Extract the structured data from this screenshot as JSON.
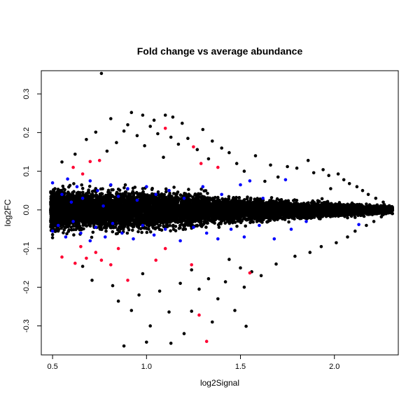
{
  "chart_data": {
    "type": "scatter",
    "title": "Fold change vs average abundance",
    "xlabel": "log2Signal",
    "ylabel": "log2FC",
    "xlim": [
      0.44,
      2.34
    ],
    "ylim": [
      -0.375,
      0.36
    ],
    "x_ticks": [
      {
        "value": 0.5,
        "label": "0.5"
      },
      {
        "value": 1.0,
        "label": "1.0"
      },
      {
        "value": 1.5,
        "label": "1.5"
      },
      {
        "value": 2.0,
        "label": "2.0"
      }
    ],
    "y_ticks": [
      {
        "value": -0.3,
        "label": "-0.3"
      },
      {
        "value": -0.2,
        "label": "-0.2"
      },
      {
        "value": -0.1,
        "label": "-0.1"
      },
      {
        "value": 0.0,
        "label": "0.0"
      },
      {
        "value": 0.1,
        "label": "0.1"
      },
      {
        "value": 0.2,
        "label": "0.2"
      },
      {
        "value": 0.3,
        "label": "0.3"
      }
    ],
    "grid": false,
    "legend": "none",
    "colors": {
      "black": "#000000",
      "blue": "#0000ff",
      "red": "#ff0033"
    },
    "series": [
      {
        "color": "black",
        "points": [
          [
            0.76,
            0.353
          ],
          [
            0.92,
            0.252
          ],
          [
            0.98,
            0.245
          ],
          [
            1.1,
            0.245
          ],
          [
            1.14,
            0.24
          ],
          [
            0.81,
            0.236
          ],
          [
            1.04,
            0.232
          ],
          [
            1.19,
            0.224
          ],
          [
            0.9,
            0.22
          ],
          [
            1.02,
            0.216
          ],
          [
            1.3,
            0.208
          ],
          [
            0.88,
            0.204
          ],
          [
            0.73,
            0.201
          ],
          [
            1.06,
            0.197
          ],
          [
            0.95,
            0.192
          ],
          [
            1.13,
            0.188
          ],
          [
            1.22,
            0.185
          ],
          [
            0.68,
            0.182
          ],
          [
            1.35,
            0.178
          ],
          [
            0.84,
            0.174
          ],
          [
            1.17,
            0.17
          ],
          [
            0.99,
            0.166
          ],
          [
            1.4,
            0.16
          ],
          [
            1.27,
            0.156
          ],
          [
            0.79,
            0.152
          ],
          [
            1.44,
            0.148
          ],
          [
            0.62,
            0.144
          ],
          [
            1.58,
            0.14
          ],
          [
            1.09,
            0.136
          ],
          [
            1.33,
            0.132
          ],
          [
            1.86,
            0.128
          ],
          [
            0.55,
            0.124
          ],
          [
            1.48,
            0.12
          ],
          [
            1.66,
            0.116
          ],
          [
            1.75,
            0.112
          ],
          [
            1.8,
            0.108
          ],
          [
            1.94,
            0.104
          ],
          [
            1.52,
            0.1
          ],
          [
            1.89,
            0.096
          ],
          [
            2.02,
            0.093
          ],
          [
            1.97,
            0.089
          ],
          [
            1.7,
            0.085
          ],
          [
            2.05,
            0.078
          ],
          [
            1.63,
            0.074
          ],
          [
            2.08,
            0.068
          ],
          [
            2.12,
            0.06
          ],
          [
            1.98,
            0.055
          ],
          [
            2.15,
            0.05
          ],
          [
            2.18,
            0.04
          ],
          [
            2.22,
            0.03
          ],
          [
            2.26,
            0.02
          ],
          [
            2.29,
            0.008
          ],
          [
            0.88,
            -0.352
          ],
          [
            1.0,
            -0.342
          ],
          [
            1.13,
            -0.345
          ],
          [
            1.53,
            -0.301
          ],
          [
            0.92,
            -0.26
          ],
          [
            1.12,
            -0.264
          ],
          [
            1.24,
            -0.262
          ],
          [
            1.47,
            -0.26
          ],
          [
            0.85,
            -0.236
          ],
          [
            1.38,
            -0.23
          ],
          [
            0.96,
            -0.22
          ],
          [
            1.07,
            -0.21
          ],
          [
            1.28,
            -0.205
          ],
          [
            1.52,
            -0.2
          ],
          [
            0.82,
            -0.196
          ],
          [
            1.18,
            -0.19
          ],
          [
            1.42,
            -0.186
          ],
          [
            0.71,
            -0.182
          ],
          [
            1.33,
            -0.178
          ],
          [
            1.61,
            -0.17
          ],
          [
            0.98,
            -0.165
          ],
          [
            1.56,
            -0.16
          ],
          [
            1.24,
            -0.155
          ],
          [
            1.5,
            -0.15
          ],
          [
            0.66,
            -0.146
          ],
          [
            1.69,
            -0.14
          ],
          [
            1.79,
            -0.12
          ],
          [
            1.44,
            -0.128
          ],
          [
            1.87,
            -0.11
          ],
          [
            1.93,
            -0.095
          ],
          [
            2.01,
            -0.085
          ],
          [
            2.07,
            -0.07
          ],
          [
            2.11,
            -0.055
          ],
          [
            2.17,
            -0.04
          ],
          [
            2.21,
            -0.03
          ],
          [
            2.25,
            -0.018
          ],
          [
            2.28,
            -0.008
          ],
          [
            1.2,
            -0.32
          ],
          [
            1.02,
            -0.3
          ],
          [
            1.35,
            -0.29
          ]
        ]
      },
      {
        "color": "blue",
        "points": [
          [
            0.5,
            0.07
          ],
          [
            0.55,
            0.04
          ],
          [
            0.58,
            0.08
          ],
          [
            0.6,
            0.02
          ],
          [
            0.63,
            0.06
          ],
          [
            0.66,
            0.03
          ],
          [
            0.7,
            0.075
          ],
          [
            0.74,
            0.05
          ],
          [
            0.77,
            0.01
          ],
          [
            0.81,
            0.065
          ],
          [
            0.85,
            0.035
          ],
          [
            0.9,
            0.055
          ],
          [
            0.95,
            0.025
          ],
          [
            1.0,
            0.06
          ],
          [
            1.05,
            0.04
          ],
          [
            1.12,
            0.05
          ],
          [
            1.2,
            0.03
          ],
          [
            1.3,
            0.06
          ],
          [
            1.4,
            0.04
          ],
          [
            1.5,
            0.065
          ],
          [
            1.55,
            0.075
          ],
          [
            1.62,
            0.03
          ],
          [
            1.74,
            0.078
          ],
          [
            0.5,
            -0.055
          ],
          [
            0.53,
            -0.04
          ],
          [
            0.57,
            -0.07
          ],
          [
            0.61,
            -0.03
          ],
          [
            0.65,
            -0.06
          ],
          [
            0.7,
            -0.08
          ],
          [
            0.73,
            -0.045
          ],
          [
            0.78,
            -0.07
          ],
          [
            0.82,
            -0.035
          ],
          [
            0.87,
            -0.06
          ],
          [
            0.93,
            -0.075
          ],
          [
            0.98,
            -0.04
          ],
          [
            1.04,
            -0.065
          ],
          [
            1.1,
            -0.05
          ],
          [
            1.18,
            -0.08
          ],
          [
            1.25,
            -0.045
          ],
          [
            1.32,
            -0.06
          ],
          [
            1.38,
            -0.075
          ],
          [
            1.45,
            -0.05
          ],
          [
            1.52,
            -0.07
          ],
          [
            1.6,
            -0.04
          ],
          [
            1.68,
            -0.075
          ],
          [
            1.77,
            -0.05
          ],
          [
            1.85,
            -0.03
          ],
          [
            2.13,
            -0.038
          ]
        ]
      },
      {
        "color": "red",
        "points": [
          [
            1.1,
            0.211
          ],
          [
            1.25,
            0.163
          ],
          [
            1.29,
            0.12
          ],
          [
            1.38,
            0.11
          ],
          [
            0.7,
            0.125
          ],
          [
            0.75,
            0.128
          ],
          [
            0.61,
            0.11
          ],
          [
            0.66,
            0.093
          ],
          [
            0.55,
            -0.122
          ],
          [
            0.62,
            -0.138
          ],
          [
            0.68,
            -0.125
          ],
          [
            0.73,
            -0.11
          ],
          [
            0.76,
            -0.13
          ],
          [
            0.81,
            -0.142
          ],
          [
            0.9,
            -0.182
          ],
          [
            1.05,
            -0.13
          ],
          [
            1.1,
            -0.1
          ],
          [
            1.24,
            -0.142
          ],
          [
            1.28,
            -0.272
          ],
          [
            1.32,
            -0.34
          ],
          [
            1.55,
            -0.163
          ],
          [
            0.65,
            -0.095
          ],
          [
            0.85,
            -0.1
          ]
        ]
      }
    ]
  }
}
